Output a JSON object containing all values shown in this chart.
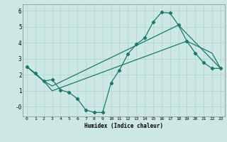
{
  "xlabel": "Humidex (Indice chaleur)",
  "background_color": "#cde8e4",
  "grid_color": "#aad4cc",
  "line_color": "#1a7a6a",
  "series1_x": [
    0,
    1,
    2,
    3,
    4,
    5,
    6,
    7,
    8,
    9,
    10,
    11,
    12,
    13,
    14,
    15,
    16,
    17,
    18,
    19,
    20,
    21,
    22,
    23
  ],
  "series1_y": [
    2.5,
    2.1,
    1.6,
    1.7,
    1.05,
    0.9,
    0.5,
    -0.2,
    -0.35,
    -0.35,
    1.5,
    2.3,
    3.3,
    3.9,
    4.3,
    5.3,
    5.9,
    5.85,
    5.1,
    4.1,
    3.35,
    2.75,
    2.4,
    2.4
  ],
  "series2_x": [
    0,
    2,
    3,
    18,
    23
  ],
  "series2_y": [
    2.5,
    1.6,
    1.3,
    5.1,
    2.4
  ],
  "series3_x": [
    0,
    2,
    3,
    19,
    22,
    23
  ],
  "series3_y": [
    2.5,
    1.6,
    1.0,
    4.1,
    3.35,
    2.4
  ],
  "ylim": [
    -0.6,
    6.4
  ],
  "xlim": [
    -0.5,
    23.5
  ],
  "yticks": [
    0,
    1,
    2,
    3,
    4,
    5,
    6
  ],
  "ytick_labels": [
    "-0",
    "1",
    "2",
    "3",
    "4",
    "5",
    "6"
  ],
  "xticks": [
    0,
    1,
    2,
    3,
    4,
    5,
    6,
    7,
    8,
    9,
    10,
    11,
    12,
    13,
    14,
    15,
    16,
    17,
    18,
    19,
    20,
    21,
    22,
    23
  ]
}
